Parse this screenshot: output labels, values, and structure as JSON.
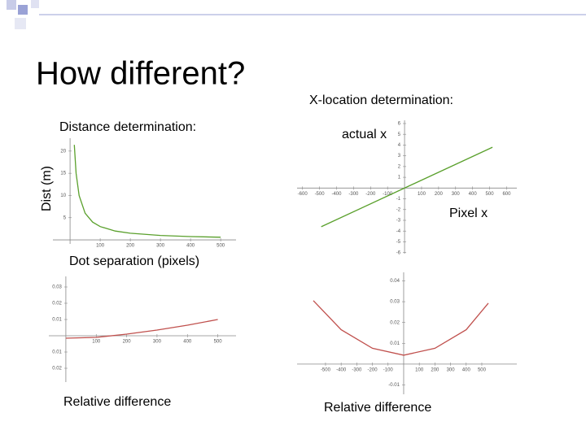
{
  "title": "How different?",
  "chart_data": [
    {
      "type": "line",
      "title": "Distance determination:",
      "y_label": "Dist (m)",
      "x_label": "Dot separation (pixels)",
      "x": [
        14,
        20,
        30,
        50,
        75,
        100,
        150,
        200,
        300,
        400,
        500
      ],
      "series": [
        {
          "color": "#5aa02c",
          "values": [
            21.4,
            15,
            10,
            6,
            4,
            3,
            2,
            1.5,
            1,
            0.75,
            0.6
          ]
        }
      ],
      "xlim": [
        -57,
        551
      ],
      "ylim": [
        -0.9,
        22.9
      ],
      "xticks": [
        100,
        200,
        300,
        400,
        500
      ],
      "yticks": [
        5,
        10,
        15,
        20
      ]
    },
    {
      "type": "line",
      "title": "X-location determination:",
      "y_label": "actual x",
      "x_label": "Pixel x",
      "x": [
        -490,
        517
      ],
      "series": [
        {
          "color": "#5aa02c",
          "values": [
            -3.6,
            3.8
          ]
        }
      ],
      "xlim": [
        -632,
        660
      ],
      "ylim": [
        -6.1,
        6.3
      ],
      "xticks": [
        -600,
        -500,
        -400,
        -300,
        -200,
        -100,
        100,
        200,
        300,
        400,
        500,
        600
      ],
      "yticks": [
        -6,
        -5,
        -4,
        -3,
        -2,
        -1,
        1,
        2,
        3,
        4,
        5,
        6
      ]
    },
    {
      "type": "line",
      "caption": "Relative difference",
      "x": [
        0,
        100,
        200,
        300,
        400,
        500
      ],
      "series": [
        {
          "color": "#c0504d",
          "values": [
            -0.0015,
            -0.001,
            0.001,
            0.0035,
            0.0065,
            0.01
          ]
        }
      ],
      "xlim": [
        -56,
        560
      ],
      "ylim": [
        -0.0285,
        0.0365
      ],
      "xticks": [
        100,
        200,
        300,
        400,
        500
      ],
      "yticks": [
        0.03,
        0.02,
        0.01,
        {
          "value": -0.01,
          "label": "0.01"
        },
        {
          "value": -0.02,
          "label": "0.02"
        }
      ]
    },
    {
      "type": "line",
      "caption": "Relative difference",
      "x": [
        -578,
        -400,
        -200,
        0,
        200,
        400,
        542
      ],
      "series": [
        {
          "color": "#c0504d",
          "values": [
            0.0305,
            0.0165,
            0.0076,
            0.0043,
            0.0076,
            0.0165,
            0.0293
          ]
        }
      ],
      "xlim": [
        -682,
        724
      ],
      "ylim": [
        -0.0145,
        0.0441
      ],
      "xticks": [
        -500,
        -400,
        -300,
        -200,
        -100,
        100,
        200,
        300,
        400,
        500
      ],
      "yticks": [
        0.04,
        0.03,
        0.02,
        0.01,
        -0.01
      ]
    }
  ]
}
